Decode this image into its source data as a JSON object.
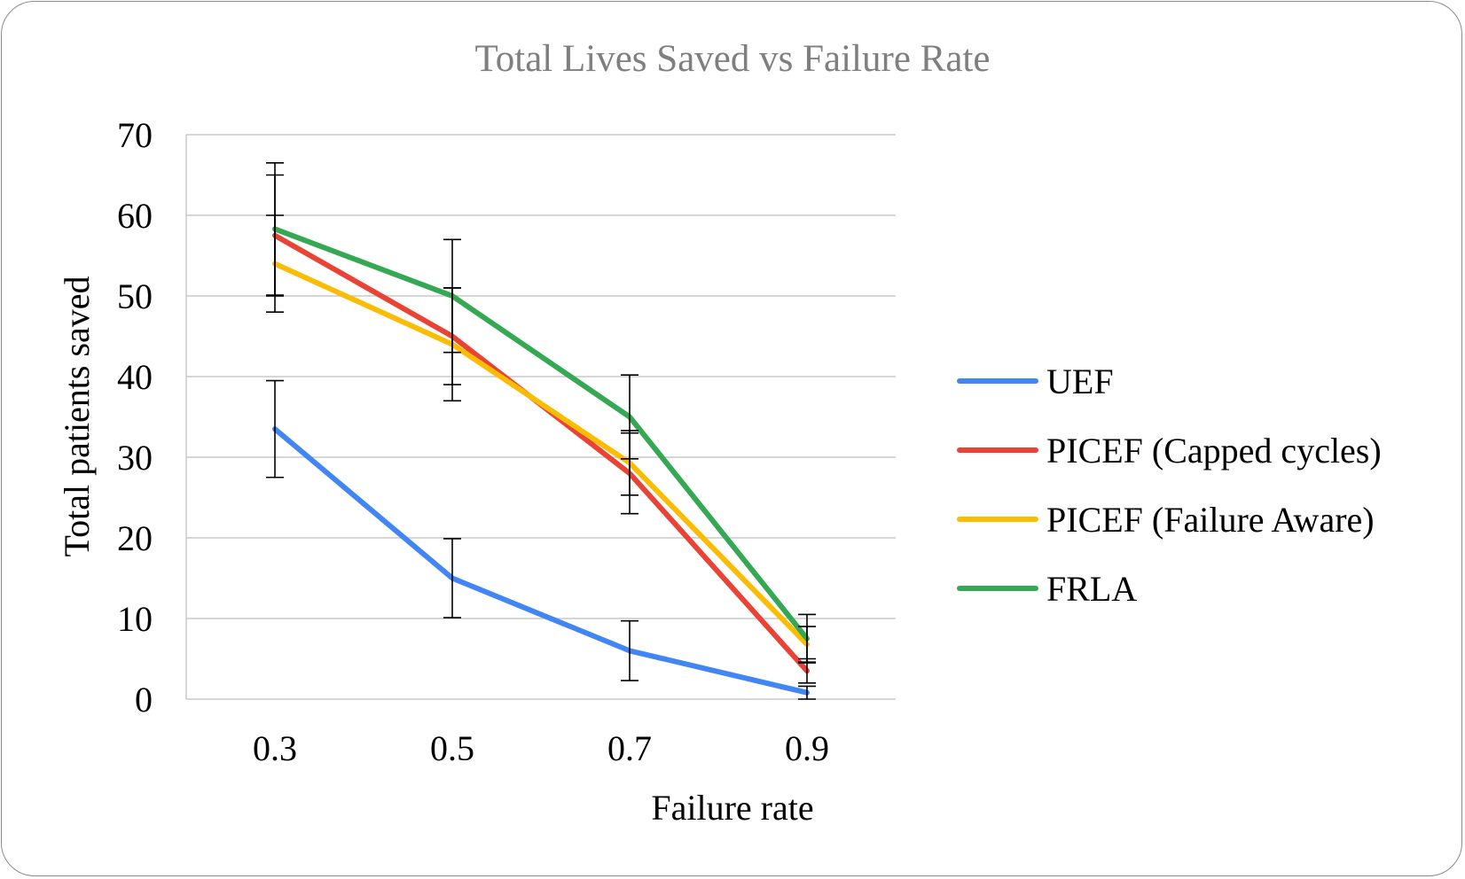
{
  "chart_data": {
    "type": "line",
    "title": "Total Lives Saved vs Failure Rate",
    "xlabel": "Failure rate",
    "ylabel": "Total patients saved",
    "categories": [
      "0.3",
      "0.5",
      "0.7",
      "0.9"
    ],
    "ylim": [
      0,
      70
    ],
    "yticks": [
      0,
      10,
      20,
      30,
      40,
      50,
      60,
      70
    ],
    "grid": "horizontal",
    "legend_position": "right",
    "series": [
      {
        "name": "UEF",
        "color": "#4285f4",
        "values": [
          33.5,
          15,
          6,
          0.8
        ],
        "error": [
          6,
          4.9,
          3.7,
          0.8
        ]
      },
      {
        "name": "PICEF (Capped cycles)",
        "color": "#ea4335",
        "values": [
          57.5,
          45,
          28,
          3.5
        ],
        "error": [
          7.5,
          6,
          5,
          1.5
        ]
      },
      {
        "name": "PICEF (Failure Aware)",
        "color": "#fbbc04",
        "values": [
          54,
          44,
          29.3,
          6.8
        ],
        "error": [
          6,
          7,
          4,
          2.2
        ]
      },
      {
        "name": "FRLA",
        "color": "#34a853",
        "values": [
          58.3,
          50,
          35,
          7.5
        ],
        "error": [
          8.2,
          7,
          5.2,
          3
        ]
      }
    ]
  }
}
